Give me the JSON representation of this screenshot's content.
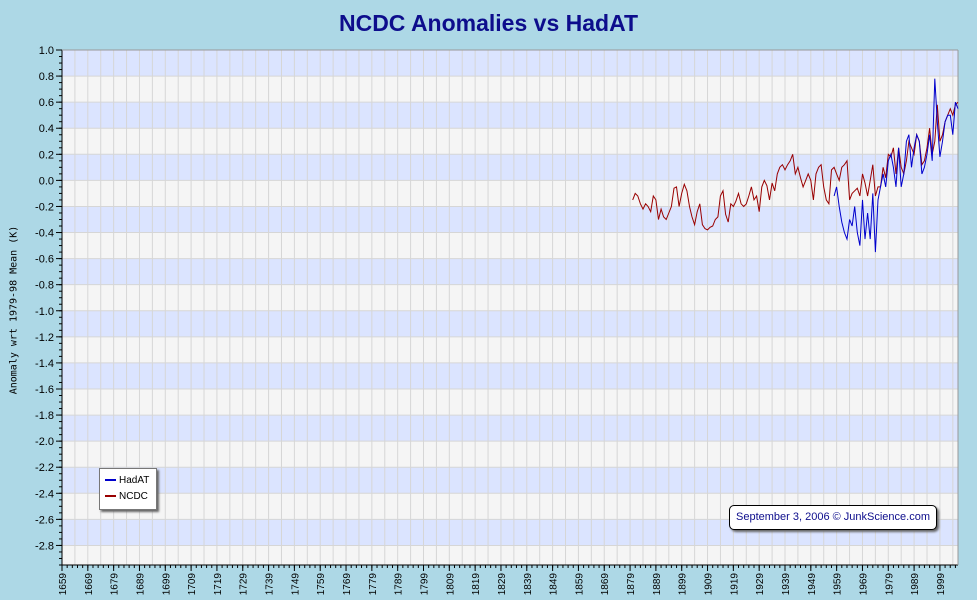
{
  "chart_data": {
    "type": "line",
    "title": "NCDC Anomalies vs HadAT",
    "xlabel": "",
    "ylabel": "Anomaly wrt 1979-98 Mean (K)",
    "xlim": [
      1659,
      2006
    ],
    "ylim": [
      -2.95,
      1.0
    ],
    "x_ticks": [
      "1659",
      "1669",
      "1679",
      "1689",
      "1699",
      "1709",
      "1719",
      "1729",
      "1739",
      "1749",
      "1759",
      "1769",
      "1779",
      "1789",
      "1799",
      "1809",
      "1819",
      "1829",
      "1839",
      "1849",
      "1859",
      "1869",
      "1879",
      "1889",
      "1899",
      "1909",
      "1919",
      "1929",
      "1939",
      "1949",
      "1959",
      "1969",
      "1979",
      "1989",
      "1999"
    ],
    "y_ticks": [
      "1.0",
      "0.8",
      "0.6",
      "0.4",
      "0.2",
      "0.0",
      "-0.2",
      "-0.4",
      "-0.6",
      "-0.8",
      "-1.0",
      "-1.2",
      "-1.4",
      "-1.6",
      "-1.8",
      "-2.0",
      "-2.2",
      "-2.4",
      "-2.6",
      "-2.8"
    ],
    "grid": true,
    "legend_position": "bottom-left",
    "series": [
      {
        "name": "HadAT",
        "color": "#0000cc",
        "x": [
          1958,
          1959,
          1960,
          1961,
          1962,
          1963,
          1964,
          1965,
          1966,
          1967,
          1968,
          1969,
          1970,
          1971,
          1972,
          1973,
          1974,
          1975,
          1976,
          1977,
          1978,
          1979,
          1980,
          1981,
          1982,
          1983,
          1984,
          1985,
          1986,
          1987,
          1988,
          1989,
          1990,
          1991,
          1992,
          1993,
          1994,
          1995,
          1996,
          1997,
          1998,
          1999,
          2000,
          2001,
          2002,
          2003,
          2004,
          2005,
          2006
        ],
        "values": [
          -0.12,
          -0.05,
          -0.2,
          -0.32,
          -0.4,
          -0.45,
          -0.3,
          -0.35,
          -0.2,
          -0.4,
          -0.5,
          -0.15,
          -0.45,
          -0.25,
          -0.45,
          -0.1,
          -0.55,
          -0.15,
          -0.05,
          0.05,
          -0.05,
          0.15,
          0.2,
          0.1,
          -0.05,
          0.25,
          -0.05,
          0.05,
          0.3,
          0.35,
          0.1,
          0.25,
          0.35,
          0.3,
          0.05,
          0.1,
          0.2,
          0.35,
          0.15,
          0.78,
          0.45,
          0.18,
          0.3,
          0.45,
          0.5,
          0.5,
          0.35,
          0.6,
          0.55
        ]
      },
      {
        "name": "NCDC",
        "color": "#990000",
        "x": [
          1880,
          1881,
          1882,
          1883,
          1884,
          1885,
          1886,
          1887,
          1888,
          1889,
          1890,
          1891,
          1892,
          1893,
          1894,
          1895,
          1896,
          1897,
          1898,
          1899,
          1900,
          1901,
          1902,
          1903,
          1904,
          1905,
          1906,
          1907,
          1908,
          1909,
          1910,
          1911,
          1912,
          1913,
          1914,
          1915,
          1916,
          1917,
          1918,
          1919,
          1920,
          1921,
          1922,
          1923,
          1924,
          1925,
          1926,
          1927,
          1928,
          1929,
          1930,
          1931,
          1932,
          1933,
          1934,
          1935,
          1936,
          1937,
          1938,
          1939,
          1940,
          1941,
          1942,
          1943,
          1944,
          1945,
          1946,
          1947,
          1948,
          1949,
          1950,
          1951,
          1952,
          1953,
          1954,
          1955,
          1956,
          1957,
          1958,
          1959,
          1960,
          1961,
          1962,
          1963,
          1964,
          1965,
          1966,
          1967,
          1968,
          1969,
          1970,
          1971,
          1972,
          1973,
          1974,
          1975,
          1976,
          1977,
          1978,
          1979,
          1980,
          1981,
          1982,
          1983,
          1984,
          1985,
          1986,
          1987,
          1988,
          1989,
          1990,
          1991,
          1992,
          1993,
          1994,
          1995,
          1996,
          1997,
          1998,
          1999,
          2000,
          2001,
          2002,
          2003,
          2004,
          2005,
          2006
        ],
        "values": [
          -0.15,
          -0.1,
          -0.12,
          -0.18,
          -0.22,
          -0.18,
          -0.2,
          -0.24,
          -0.12,
          -0.15,
          -0.3,
          -0.22,
          -0.28,
          -0.3,
          -0.25,
          -0.2,
          -0.06,
          -0.05,
          -0.2,
          -0.1,
          -0.03,
          -0.08,
          -0.2,
          -0.28,
          -0.34,
          -0.24,
          -0.18,
          -0.34,
          -0.37,
          -0.38,
          -0.36,
          -0.35,
          -0.3,
          -0.28,
          -0.12,
          -0.08,
          -0.26,
          -0.32,
          -0.18,
          -0.2,
          -0.16,
          -0.1,
          -0.18,
          -0.2,
          -0.18,
          -0.12,
          -0.05,
          -0.15,
          -0.12,
          -0.24,
          -0.05,
          0.0,
          -0.04,
          -0.15,
          -0.02,
          -0.08,
          0.05,
          0.1,
          0.12,
          0.08,
          0.12,
          0.15,
          0.2,
          0.05,
          0.1,
          0.02,
          -0.05,
          0.0,
          0.05,
          0.0,
          -0.15,
          0.05,
          0.1,
          0.12,
          -0.05,
          -0.15,
          -0.18,
          0.08,
          0.1,
          0.05,
          0.0,
          0.1,
          0.12,
          0.15,
          -0.15,
          -0.1,
          -0.08,
          -0.06,
          -0.12,
          0.05,
          -0.02,
          -0.12,
          0.0,
          0.12,
          -0.12,
          -0.05,
          -0.05,
          0.1,
          0.02,
          0.2,
          0.18,
          0.25,
          0.05,
          0.25,
          0.1,
          0.05,
          0.15,
          0.3,
          0.25,
          0.2,
          0.35,
          0.3,
          0.12,
          0.15,
          0.25,
          0.4,
          0.2,
          0.3,
          0.58,
          0.3,
          0.35,
          0.45,
          0.5,
          0.55,
          0.5,
          0.58,
          0.6
        ]
      }
    ],
    "annotations": [
      "September 3, 2006 © JunkScience.com"
    ]
  }
}
